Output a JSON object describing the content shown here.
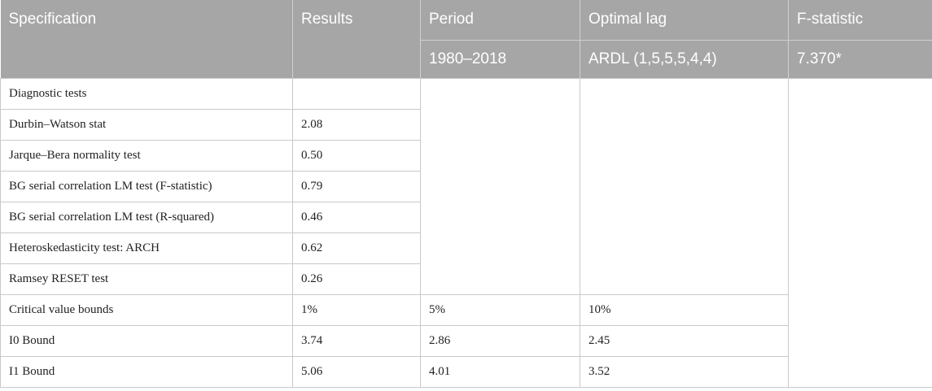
{
  "header": {
    "specification": "Specification",
    "results": "Results",
    "period": "Period",
    "optimal_lag": "Optimal lag",
    "f_statistic": "F-statistic",
    "period_value": "1980–2018",
    "optimal_lag_value": "ARDL (1,5,5,5,4,4)",
    "f_statistic_value": "7.370*"
  },
  "rows": [
    {
      "label": "Diagnostic tests",
      "result": ""
    },
    {
      "label": "Durbin–Watson stat",
      "result": "2.08"
    },
    {
      "label": "Jarque–Bera normality test",
      "result": "0.50"
    },
    {
      "label": "BG serial correlation LM test (F-statistic)",
      "result": "0.79"
    },
    {
      "label": "BG serial correlation LM test (R-squared)",
      "result": "0.46"
    },
    {
      "label": "Heteroskedasticity test: ARCH",
      "result": "0.62"
    },
    {
      "label": "Ramsey RESET test",
      "result": "0.26"
    }
  ],
  "bounds": [
    {
      "label": "Critical value bounds",
      "v1": "1%",
      "v2": "5%",
      "v3": "10%"
    },
    {
      "label": "I0 Bound",
      "v1": "3.74",
      "v2": "2.86",
      "v3": "2.45"
    },
    {
      "label": "I1 Bound",
      "v1": "5.06",
      "v2": "4.01",
      "v3": "3.52"
    }
  ],
  "colors": {
    "header_bg": "#a6a6a6",
    "header_text": "#ffffff",
    "grid": "#c9c9c9"
  }
}
